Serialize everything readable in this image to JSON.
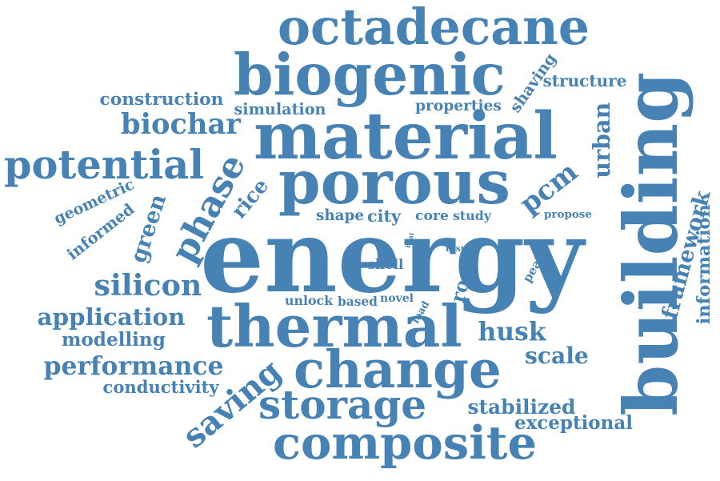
{
  "style": {
    "word_color": "#4682b4",
    "background": "#ffffff"
  },
  "words": [
    {
      "id": "energy",
      "text": "energy"
    },
    {
      "id": "building",
      "text": "building"
    },
    {
      "id": "material",
      "text": "material"
    },
    {
      "id": "biogenic",
      "text": "biogenic"
    },
    {
      "id": "thermal",
      "text": "thermal"
    },
    {
      "id": "porous",
      "text": "porous"
    },
    {
      "id": "octadecane",
      "text": "octadecane"
    },
    {
      "id": "change",
      "text": "change"
    },
    {
      "id": "composite",
      "text": "composite"
    },
    {
      "id": "potential",
      "text": "potential"
    },
    {
      "id": "storage",
      "text": "storage"
    },
    {
      "id": "phase",
      "text": "phase"
    },
    {
      "id": "silicon",
      "text": "silicon"
    },
    {
      "id": "biochar",
      "text": "biochar"
    },
    {
      "id": "performance",
      "text": "performance"
    },
    {
      "id": "application",
      "text": "application"
    },
    {
      "id": "husk",
      "text": "husk"
    },
    {
      "id": "saving",
      "text": "saving"
    },
    {
      "id": "pcm",
      "text": "pcm"
    },
    {
      "id": "scale",
      "text": "scale"
    },
    {
      "id": "green",
      "text": "green"
    },
    {
      "id": "urban",
      "text": "urban"
    },
    {
      "id": "structure",
      "text": "structure"
    },
    {
      "id": "modelling",
      "text": "modelling"
    },
    {
      "id": "stabilized",
      "text": "stabilized"
    },
    {
      "id": "construction",
      "text": "construction"
    },
    {
      "id": "rice",
      "text": "rice"
    },
    {
      "id": "framework",
      "text": "framework"
    },
    {
      "id": "informed",
      "text": "informed"
    },
    {
      "id": "roof",
      "text": "roof"
    },
    {
      "id": "conductivity",
      "text": "conductivity"
    },
    {
      "id": "exceptional",
      "text": "exceptional"
    },
    {
      "id": "shaving",
      "text": "shaving"
    },
    {
      "id": "simulation",
      "text": "simulation"
    },
    {
      "id": "properties",
      "text": "properties"
    },
    {
      "id": "shape",
      "text": "shape"
    },
    {
      "id": "city",
      "text": "city"
    },
    {
      "id": "information",
      "text": "information"
    },
    {
      "id": "shell",
      "text": "shell"
    },
    {
      "id": "geometric",
      "text": "geometric"
    },
    {
      "id": "core",
      "text": "core"
    },
    {
      "id": "study",
      "text": "study"
    },
    {
      "id": "propose",
      "text": "propose"
    },
    {
      "id": "unlock",
      "text": "unlock"
    },
    {
      "id": "based",
      "text": "based"
    },
    {
      "id": "novel",
      "text": "novel"
    },
    {
      "id": "peak",
      "text": "peak"
    },
    {
      "id": "load",
      "text": "load"
    },
    {
      "id": "result",
      "text": "result"
    },
    {
      "id": "heat",
      "text": "heat"
    }
  ]
}
